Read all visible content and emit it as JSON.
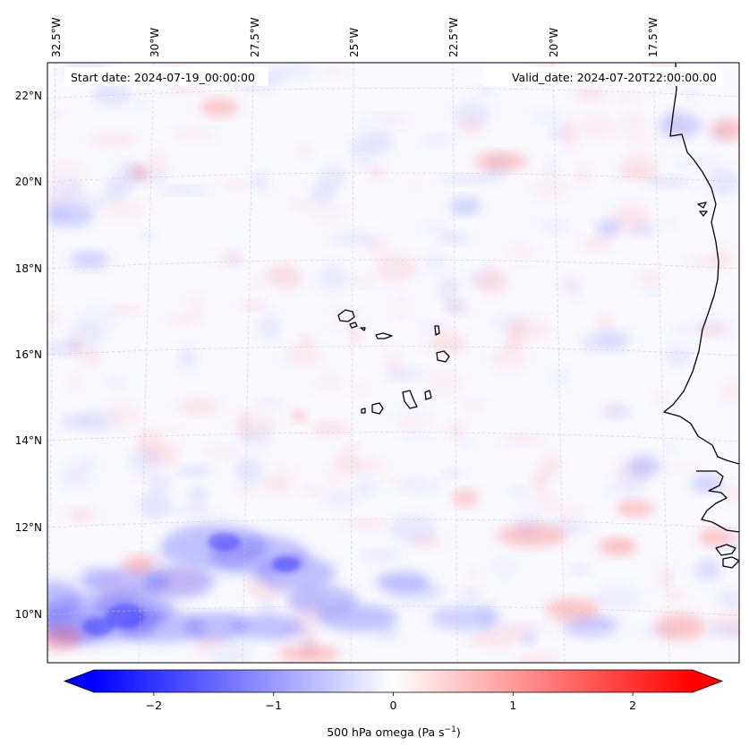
{
  "map": {
    "start_label": "Start date: 2024-07-19_00:00:00",
    "valid_label": "Valid_date: 2024-07-20T22:00:00.00",
    "lon_ticks": [
      "32.5°W",
      "30°W",
      "27.5°W",
      "25°W",
      "22.5°W",
      "20°W",
      "17.5°W"
    ],
    "lat_ticks": [
      "22°N",
      "20°N",
      "18°N",
      "16°N",
      "14°N",
      "12°N",
      "10°N"
    ],
    "region": {
      "lon_min": -32.7,
      "lon_max": -15.8,
      "lat_min": 8.9,
      "lat_max": 22.8
    },
    "features": [
      "Cape Verde islands",
      "West African coastline"
    ]
  },
  "colorbar": {
    "title_main": "500 hPa omega (Pa s",
    "title_exp": "−1",
    "title_close": ")",
    "tick_labels": [
      "−2",
      "−1",
      "0",
      "1",
      "2"
    ],
    "tick_values": [
      -2,
      -1,
      0,
      1,
      2
    ],
    "range": [
      -2.5,
      2.5
    ],
    "extend": "both",
    "colormap": "bwr",
    "color_low": "#0000ff",
    "color_mid": "#ffffff",
    "color_high": "#ff0000"
  }
}
